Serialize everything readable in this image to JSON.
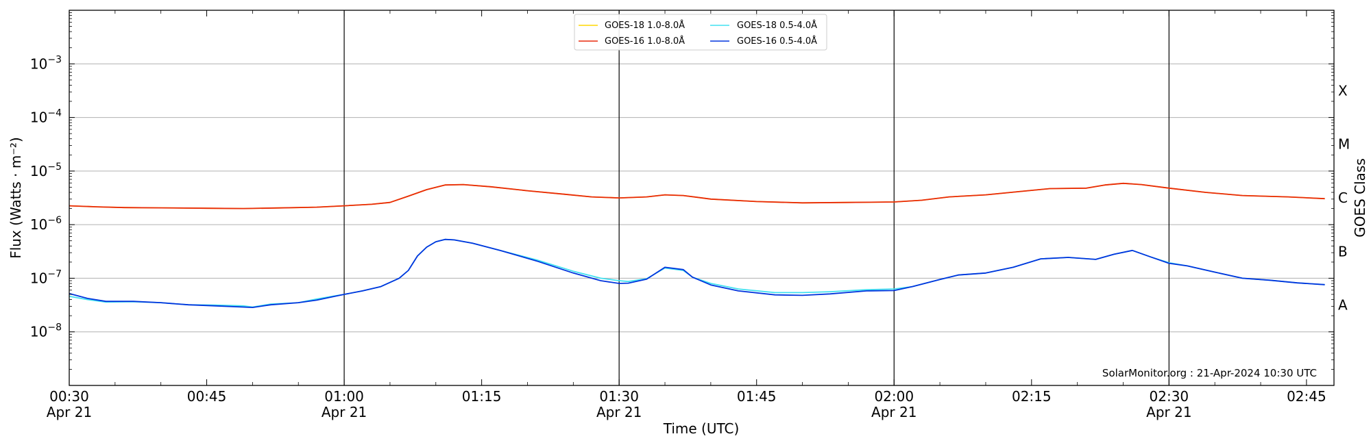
{
  "chart_data": {
    "type": "line",
    "title": "",
    "xlabel": "Time (UTC)",
    "ylabel": "Flux (Watts · m⁻²)",
    "y2label": "GOES Class",
    "yscale": "log",
    "ylim": [
      1e-09,
      0.01
    ],
    "xlim": [
      "00:30",
      "02:48"
    ],
    "grid": "horizontal at y decades",
    "legend_position": "top-center",
    "credit": "SolarMonitor.org : 21-Apr-2024 10:30 UTC",
    "x_ticks": [
      {
        "time": "00:30",
        "label": "00:30",
        "sublabel": "Apr 21",
        "vline": false
      },
      {
        "time": "00:45",
        "label": "00:45",
        "sublabel": "",
        "vline": false
      },
      {
        "time": "01:00",
        "label": "01:00",
        "sublabel": "Apr 21",
        "vline": true
      },
      {
        "time": "01:15",
        "label": "01:15",
        "sublabel": "",
        "vline": false
      },
      {
        "time": "01:30",
        "label": "01:30",
        "sublabel": "Apr 21",
        "vline": true
      },
      {
        "time": "01:45",
        "label": "01:45",
        "sublabel": "",
        "vline": false
      },
      {
        "time": "02:00",
        "label": "02:00",
        "sublabel": "Apr 21",
        "vline": true
      },
      {
        "time": "02:15",
        "label": "02:15",
        "sublabel": "",
        "vline": false
      },
      {
        "time": "02:30",
        "label": "02:30",
        "sublabel": "Apr 21",
        "vline": true
      },
      {
        "time": "02:45",
        "label": "02:45",
        "sublabel": "",
        "vline": false
      }
    ],
    "y_ticks": [
      {
        "value": 0.001,
        "base": "10",
        "exp": "−3"
      },
      {
        "value": 0.0001,
        "base": "10",
        "exp": "−4"
      },
      {
        "value": 1e-05,
        "base": "10",
        "exp": "−5"
      },
      {
        "value": 1e-06,
        "base": "10",
        "exp": "−6"
      },
      {
        "value": 1e-07,
        "base": "10",
        "exp": "−7"
      },
      {
        "value": 1e-08,
        "base": "10",
        "exp": "−8"
      }
    ],
    "goes_classes": [
      {
        "label": "X",
        "value": 0.0003162
      },
      {
        "label": "M",
        "value": 3.162e-05
      },
      {
        "label": "C",
        "value": 3.162e-06
      },
      {
        "label": "B",
        "value": 3.162e-07
      },
      {
        "label": "A",
        "value": 3.162e-08
      }
    ],
    "series": [
      {
        "name": "GOES-18 1.0-8.0Å",
        "color": "#ffd700",
        "points": [
          [
            "00:30",
            2.25e-06
          ],
          [
            "00:33",
            2.15e-06
          ],
          [
            "00:36",
            2.08e-06
          ],
          [
            "00:40",
            2.06e-06
          ],
          [
            "00:45",
            2.02e-06
          ],
          [
            "00:49",
            2e-06
          ],
          [
            "00:53",
            2.05e-06
          ],
          [
            "00:57",
            2.12e-06
          ],
          [
            "01:00",
            2.25e-06
          ],
          [
            "01:03",
            2.4e-06
          ],
          [
            "01:05",
            2.6e-06
          ],
          [
            "01:07",
            3.4e-06
          ],
          [
            "01:09",
            4.5e-06
          ],
          [
            "01:11",
            5.5e-06
          ],
          [
            "01:13",
            5.6e-06
          ],
          [
            "01:16",
            5.1e-06
          ],
          [
            "01:20",
            4.3e-06
          ],
          [
            "01:24",
            3.7e-06
          ],
          [
            "01:27",
            3.3e-06
          ],
          [
            "01:30",
            3.15e-06
          ],
          [
            "01:33",
            3.3e-06
          ],
          [
            "01:35",
            3.6e-06
          ],
          [
            "01:37",
            3.5e-06
          ],
          [
            "01:40",
            3e-06
          ],
          [
            "01:45",
            2.7e-06
          ],
          [
            "01:50",
            2.55e-06
          ],
          [
            "01:55",
            2.6e-06
          ],
          [
            "02:00",
            2.65e-06
          ],
          [
            "02:03",
            2.85e-06
          ],
          [
            "02:06",
            3.3e-06
          ],
          [
            "02:10",
            3.6e-06
          ],
          [
            "02:14",
            4.2e-06
          ],
          [
            "02:17",
            4.7e-06
          ],
          [
            "02:21",
            4.8e-06
          ],
          [
            "02:23",
            5.5e-06
          ],
          [
            "02:25",
            5.9e-06
          ],
          [
            "02:27",
            5.6e-06
          ],
          [
            "02:30",
            4.8e-06
          ],
          [
            "02:34",
            4e-06
          ],
          [
            "02:38",
            3.5e-06
          ],
          [
            "02:43",
            3.3e-06
          ],
          [
            "02:47",
            3.05e-06
          ]
        ]
      },
      {
        "name": "GOES-16 1.0-8.0Å",
        "color": "#e8290b",
        "points": [
          [
            "00:30",
            2.25e-06
          ],
          [
            "00:33",
            2.15e-06
          ],
          [
            "00:36",
            2.08e-06
          ],
          [
            "00:40",
            2.06e-06
          ],
          [
            "00:45",
            2.02e-06
          ],
          [
            "00:49",
            2e-06
          ],
          [
            "00:53",
            2.05e-06
          ],
          [
            "00:57",
            2.12e-06
          ],
          [
            "01:00",
            2.25e-06
          ],
          [
            "01:03",
            2.4e-06
          ],
          [
            "01:05",
            2.6e-06
          ],
          [
            "01:07",
            3.4e-06
          ],
          [
            "01:09",
            4.5e-06
          ],
          [
            "01:11",
            5.5e-06
          ],
          [
            "01:13",
            5.6e-06
          ],
          [
            "01:16",
            5.1e-06
          ],
          [
            "01:20",
            4.3e-06
          ],
          [
            "01:24",
            3.7e-06
          ],
          [
            "01:27",
            3.3e-06
          ],
          [
            "01:30",
            3.15e-06
          ],
          [
            "01:33",
            3.3e-06
          ],
          [
            "01:35",
            3.6e-06
          ],
          [
            "01:37",
            3.5e-06
          ],
          [
            "01:40",
            3e-06
          ],
          [
            "01:45",
            2.7e-06
          ],
          [
            "01:50",
            2.55e-06
          ],
          [
            "01:55",
            2.6e-06
          ],
          [
            "02:00",
            2.65e-06
          ],
          [
            "02:03",
            2.85e-06
          ],
          [
            "02:06",
            3.3e-06
          ],
          [
            "02:10",
            3.6e-06
          ],
          [
            "02:14",
            4.2e-06
          ],
          [
            "02:17",
            4.7e-06
          ],
          [
            "02:21",
            4.8e-06
          ],
          [
            "02:23",
            5.5e-06
          ],
          [
            "02:25",
            5.9e-06
          ],
          [
            "02:27",
            5.6e-06
          ],
          [
            "02:30",
            4.8e-06
          ],
          [
            "02:34",
            4e-06
          ],
          [
            "02:38",
            3.5e-06
          ],
          [
            "02:43",
            3.3e-06
          ],
          [
            "02:47",
            3.05e-06
          ]
        ]
      },
      {
        "name": "GOES-18 0.5-4.0Å",
        "color": "#40e0f0",
        "points": [
          [
            "00:30",
            4.6e-08
          ],
          [
            "00:32",
            4e-08
          ],
          [
            "00:34",
            3.6e-08
          ],
          [
            "00:37",
            3.65e-08
          ],
          [
            "00:40",
            3.5e-08
          ],
          [
            "00:43",
            3.2e-08
          ],
          [
            "00:46",
            3.15e-08
          ],
          [
            "00:49",
            3.05e-08
          ],
          [
            "00:50",
            2.9e-08
          ],
          [
            "00:52",
            3.3e-08
          ],
          [
            "00:55",
            3.5e-08
          ],
          [
            "00:57",
            4.1e-08
          ],
          [
            "00:59",
            4.7e-08
          ],
          [
            "01:00",
            5e-08
          ],
          [
            "01:02",
            5.8e-08
          ],
          [
            "01:04",
            7e-08
          ],
          [
            "01:06",
            1e-07
          ],
          [
            "01:07",
            1.4e-07
          ],
          [
            "01:08",
            2.6e-07
          ],
          [
            "01:09",
            3.8e-07
          ],
          [
            "01:10",
            4.8e-07
          ],
          [
            "01:11",
            5.3e-07
          ],
          [
            "01:12",
            5.2e-07
          ],
          [
            "01:14",
            4.5e-07
          ],
          [
            "01:17",
            3.3e-07
          ],
          [
            "01:21",
            2.2e-07
          ],
          [
            "01:25",
            1.35e-07
          ],
          [
            "01:28",
            1e-07
          ],
          [
            "01:30",
            9e-08
          ],
          [
            "01:31",
            8.7e-08
          ],
          [
            "01:33",
            9.8e-08
          ],
          [
            "01:35",
            1.55e-07
          ],
          [
            "01:37",
            1.4e-07
          ],
          [
            "01:38",
            1.05e-07
          ],
          [
            "01:40",
            8e-08
          ],
          [
            "01:43",
            6.3e-08
          ],
          [
            "01:47",
            5.4e-08
          ],
          [
            "01:50",
            5.4e-08
          ],
          [
            "01:53",
            5.6e-08
          ],
          [
            "01:57",
            6.1e-08
          ],
          [
            "02:00",
            6.3e-08
          ],
          [
            "02:02",
            7e-08
          ],
          [
            "02:05",
            9.5e-08
          ],
          [
            "02:07",
            1.15e-07
          ],
          [
            "02:10",
            1.25e-07
          ],
          [
            "02:13",
            1.6e-07
          ],
          [
            "02:16",
            2.3e-07
          ],
          [
            "02:19",
            2.45e-07
          ],
          [
            "02:22",
            2.25e-07
          ],
          [
            "02:24",
            2.8e-07
          ],
          [
            "02:26",
            3.3e-07
          ],
          [
            "02:28",
            2.5e-07
          ],
          [
            "02:30",
            1.95e-07
          ],
          [
            "02:32",
            1.7e-07
          ],
          [
            "02:35",
            1.3e-07
          ],
          [
            "02:38",
            1e-07
          ],
          [
            "02:41",
            9.2e-08
          ],
          [
            "02:44",
            8.2e-08
          ],
          [
            "02:47",
            7.6e-08
          ]
        ]
      },
      {
        "name": "GOES-16 0.5-4.0Å",
        "color": "#0033dd",
        "points": [
          [
            "00:30",
            5.2e-08
          ],
          [
            "00:32",
            4.2e-08
          ],
          [
            "00:34",
            3.7e-08
          ],
          [
            "00:37",
            3.7e-08
          ],
          [
            "00:40",
            3.5e-08
          ],
          [
            "00:43",
            3.2e-08
          ],
          [
            "00:46",
            3.05e-08
          ],
          [
            "00:49",
            2.9e-08
          ],
          [
            "00:50",
            2.85e-08
          ],
          [
            "00:52",
            3.2e-08
          ],
          [
            "00:55",
            3.5e-08
          ],
          [
            "00:57",
            3.9e-08
          ],
          [
            "00:59",
            4.6e-08
          ],
          [
            "01:00",
            5e-08
          ],
          [
            "01:02",
            5.8e-08
          ],
          [
            "01:04",
            7e-08
          ],
          [
            "01:06",
            1e-07
          ],
          [
            "01:07",
            1.4e-07
          ],
          [
            "01:08",
            2.6e-07
          ],
          [
            "01:09",
            3.8e-07
          ],
          [
            "01:10",
            4.8e-07
          ],
          [
            "01:11",
            5.3e-07
          ],
          [
            "01:12",
            5.2e-07
          ],
          [
            "01:14",
            4.5e-07
          ],
          [
            "01:17",
            3.3e-07
          ],
          [
            "01:21",
            2.1e-07
          ],
          [
            "01:25",
            1.25e-07
          ],
          [
            "01:28",
            9e-08
          ],
          [
            "01:30",
            8e-08
          ],
          [
            "01:31",
            8.1e-08
          ],
          [
            "01:33",
            9.6e-08
          ],
          [
            "01:35",
            1.6e-07
          ],
          [
            "01:37",
            1.45e-07
          ],
          [
            "01:38",
            1.05e-07
          ],
          [
            "01:40",
            7.5e-08
          ],
          [
            "01:43",
            5.8e-08
          ],
          [
            "01:47",
            4.9e-08
          ],
          [
            "01:50",
            4.8e-08
          ],
          [
            "01:53",
            5.1e-08
          ],
          [
            "01:57",
            5.8e-08
          ],
          [
            "02:00",
            5.9e-08
          ],
          [
            "02:02",
            7e-08
          ],
          [
            "02:05",
            9.5e-08
          ],
          [
            "02:07",
            1.15e-07
          ],
          [
            "02:10",
            1.25e-07
          ],
          [
            "02:13",
            1.6e-07
          ],
          [
            "02:16",
            2.3e-07
          ],
          [
            "02:19",
            2.45e-07
          ],
          [
            "02:22",
            2.25e-07
          ],
          [
            "02:24",
            2.8e-07
          ],
          [
            "02:26",
            3.3e-07
          ],
          [
            "02:28",
            2.5e-07
          ],
          [
            "02:30",
            1.9e-07
          ],
          [
            "02:32",
            1.7e-07
          ],
          [
            "02:35",
            1.3e-07
          ],
          [
            "02:38",
            1e-07
          ],
          [
            "02:41",
            9.2e-08
          ],
          [
            "02:44",
            8.2e-08
          ],
          [
            "02:47",
            7.6e-08
          ]
        ]
      }
    ]
  }
}
